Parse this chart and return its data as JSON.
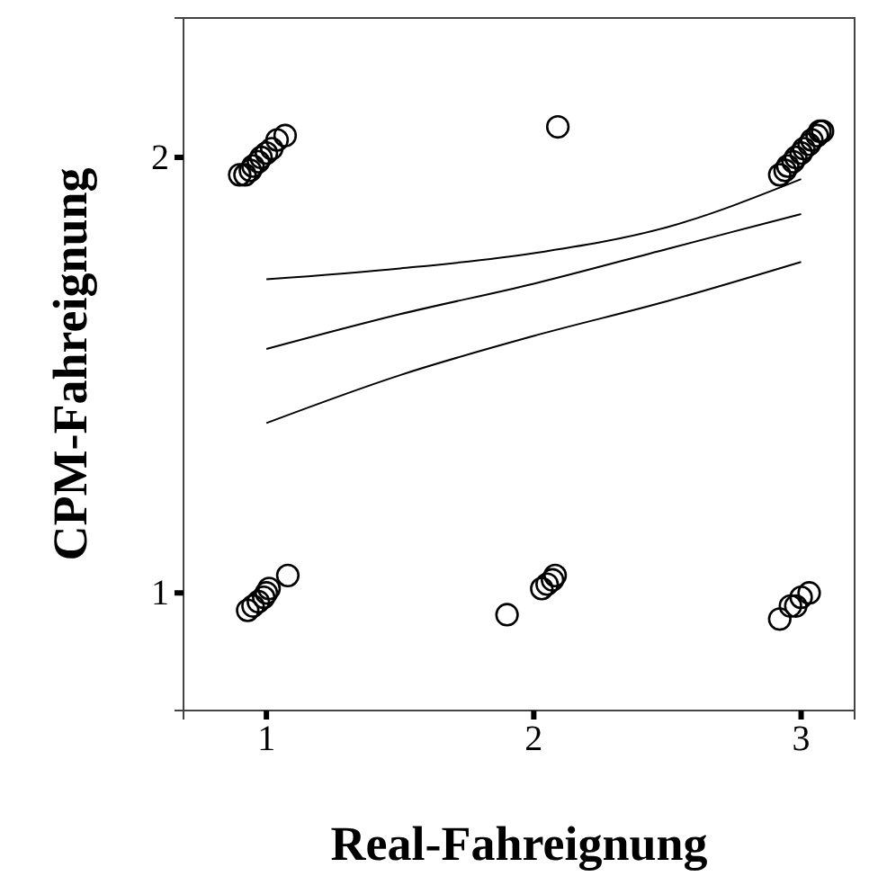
{
  "chart_data": {
    "type": "scatter",
    "xlabel": "Real-Fahreignung",
    "ylabel": "CPM-Fahreignung",
    "xlim": [
      0.69,
      3.2
    ],
    "ylim": [
      0.73,
      2.32
    ],
    "xticks": [
      1,
      2,
      3
    ],
    "yticks": [
      1,
      2
    ],
    "grid": false,
    "series": [
      {
        "marker": "circle",
        "color": "#000000",
        "x": [
          0.9,
          0.92,
          0.94,
          0.95,
          0.97,
          0.98,
          1.0,
          1.02,
          1.04,
          1.07,
          2.09,
          2.92,
          2.94,
          2.95,
          2.97,
          2.98,
          3.0,
          3.01,
          3.03,
          3.04,
          3.06,
          3.07,
          3.08,
          0.93,
          0.95,
          0.97,
          0.99,
          1.0,
          1.01,
          1.08,
          1.9,
          2.03,
          2.05,
          2.07,
          2.08,
          2.92,
          2.96,
          2.98,
          3.0,
          3.03
        ],
        "values": [
          1.96,
          1.96,
          1.97,
          1.98,
          1.99,
          2.0,
          2.01,
          2.02,
          2.04,
          2.05,
          2.07,
          1.96,
          1.97,
          1.98,
          1.99,
          2.0,
          2.01,
          2.02,
          2.03,
          2.04,
          2.05,
          2.06,
          2.06,
          0.96,
          0.97,
          0.98,
          0.99,
          1.0,
          1.01,
          1.04,
          0.95,
          1.01,
          1.02,
          1.03,
          1.04,
          0.94,
          0.97,
          0.97,
          0.99,
          1.0
        ]
      },
      {
        "type": "line",
        "color": "#000000",
        "x": [
          1,
          1.5,
          2,
          2.5,
          3
        ],
        "values": [
          1.72,
          1.745,
          1.78,
          1.84,
          1.95
        ]
      },
      {
        "type": "line",
        "color": "#000000",
        "x": [
          1,
          1.5,
          2,
          2.5,
          3
        ],
        "values": [
          1.56,
          1.64,
          1.71,
          1.79,
          1.87
        ]
      },
      {
        "type": "line",
        "color": "#000000",
        "x": [
          1,
          1.5,
          2,
          2.5,
          3
        ],
        "values": [
          1.39,
          1.5,
          1.59,
          1.67,
          1.76
        ]
      }
    ]
  }
}
